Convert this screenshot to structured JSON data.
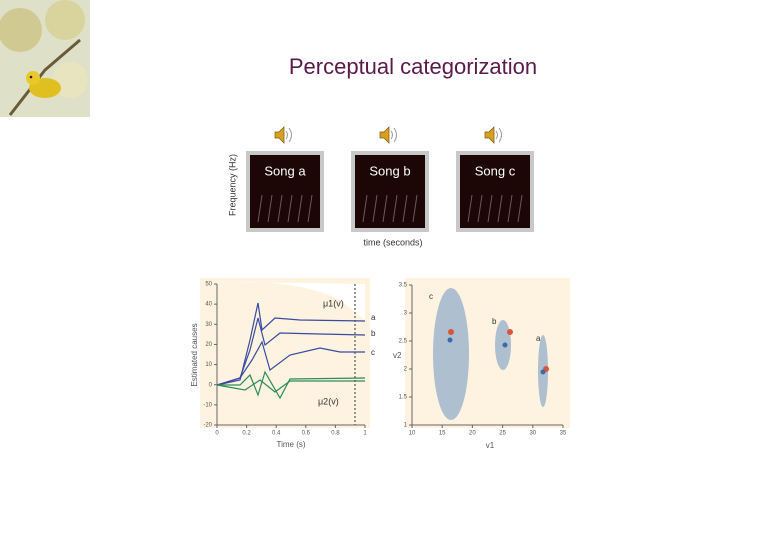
{
  "header": {
    "title": "Perceptual categorization"
  },
  "spectrogram": {
    "ylabel": "Frequency (Hz)",
    "xlabel": "time (seconds)",
    "songs": [
      "Song a",
      "Song b",
      "Song c"
    ]
  },
  "figure": {
    "left": {
      "ylabel": "Estimated causes",
      "xlabel": "Time (s)",
      "yticks": [
        50,
        40,
        30,
        20,
        10,
        0,
        -10,
        -20
      ],
      "xticks": [
        0,
        0.2,
        0.4,
        0.6,
        0.8,
        1
      ],
      "curve_labels": [
        "a",
        "b",
        "c"
      ],
      "mu1": "μ1(v)",
      "mu2": "μ2(v)"
    },
    "right": {
      "ylabel": "v2",
      "xlabel": "v1",
      "yticks": [
        3.5,
        3,
        2.5,
        2,
        1.5,
        1
      ],
      "xticks": [
        10,
        15,
        20,
        25,
        30,
        35
      ],
      "cluster_labels": [
        "c",
        "b",
        "a"
      ]
    }
  }
}
